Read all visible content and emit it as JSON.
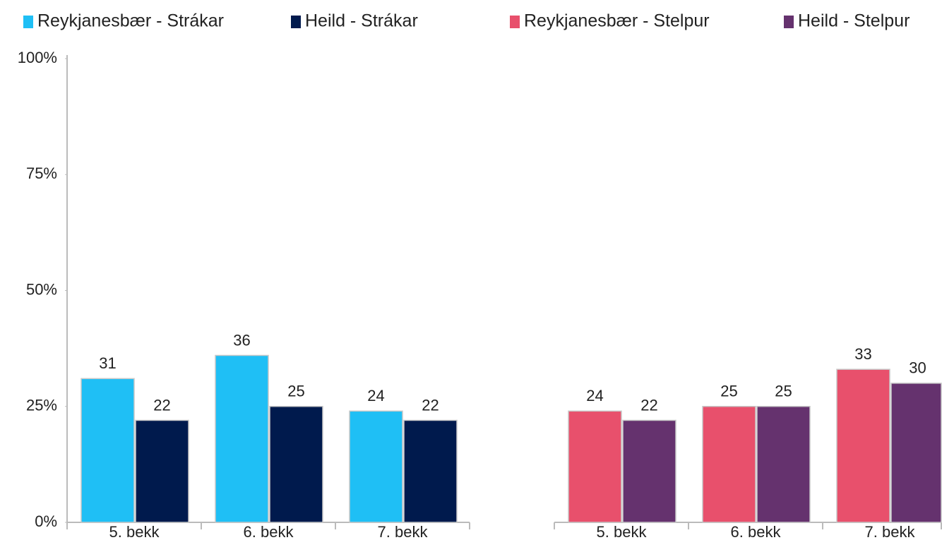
{
  "chart_data": [
    {
      "type": "bar",
      "categories": [
        "5. bekk",
        "6. bekk",
        "7. bekk"
      ],
      "series": [
        {
          "name": "Reykjanesbær - Strákar",
          "color": "#1fbff5",
          "values": [
            31,
            36,
            24
          ]
        },
        {
          "name": "Heild - Strákar",
          "color": "#001a4d",
          "values": [
            22,
            25,
            22
          ]
        }
      ],
      "ylim": [
        0,
        100
      ],
      "yticks": [
        {
          "value": 0,
          "label": "0%"
        },
        {
          "value": 25,
          "label": "25%"
        },
        {
          "value": 50,
          "label": "50%"
        },
        {
          "value": 75,
          "label": "75%"
        },
        {
          "value": 100,
          "label": "100%"
        }
      ]
    },
    {
      "type": "bar",
      "categories": [
        "5. bekk",
        "6. bekk",
        "7. bekk"
      ],
      "series": [
        {
          "name": "Reykjanesbær - Stelpur",
          "color": "#e8506c",
          "values": [
            24,
            25,
            33
          ]
        },
        {
          "name": "Heild - Stelpur",
          "color": "#65326e",
          "values": [
            22,
            25,
            30
          ]
        }
      ],
      "ylim": [
        0,
        100
      ]
    }
  ]
}
